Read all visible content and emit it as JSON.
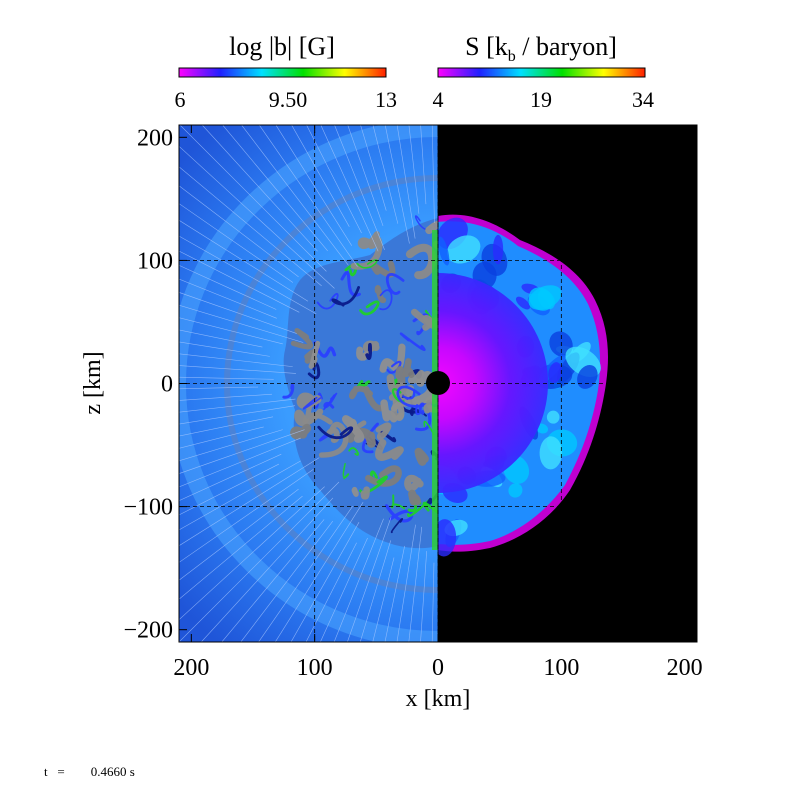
{
  "chart_data": {
    "type": "heatmap",
    "xlabel": "x [km]",
    "ylabel": "z [km]",
    "x_ticks": [
      "200",
      "100",
      "0",
      "100",
      "200"
    ],
    "y_ticks": [
      "200",
      "100",
      "0",
      "−100",
      "−200"
    ],
    "xlim": [
      -210,
      210
    ],
    "ylim": [
      -210,
      210
    ],
    "grid": true,
    "panels": [
      {
        "name": "magnetic-field",
        "side": "left",
        "colorbar": {
          "label": "log |b| [G]",
          "ticks": [
            "6",
            "9.50",
            "13"
          ],
          "range": [
            6,
            13
          ],
          "colors": [
            "#ff00ff",
            "#0000ff",
            "#00ffff",
            "#00ff00",
            "#ffff00",
            "#ff0000"
          ]
        }
      },
      {
        "name": "entropy",
        "side": "right",
        "colorbar": {
          "label_main": "S [k",
          "label_sub": "b",
          "label_tail": " / baryon]",
          "ticks": [
            "4",
            "19",
            "34"
          ],
          "range": [
            4,
            34
          ],
          "colors": [
            "#ff00ff",
            "#0000ff",
            "#00ffff",
            "#00ff00",
            "#ffff00",
            "#ff0000"
          ]
        }
      }
    ]
  },
  "time": {
    "label": "t",
    "equals": "=",
    "value": "0.4660 s"
  }
}
